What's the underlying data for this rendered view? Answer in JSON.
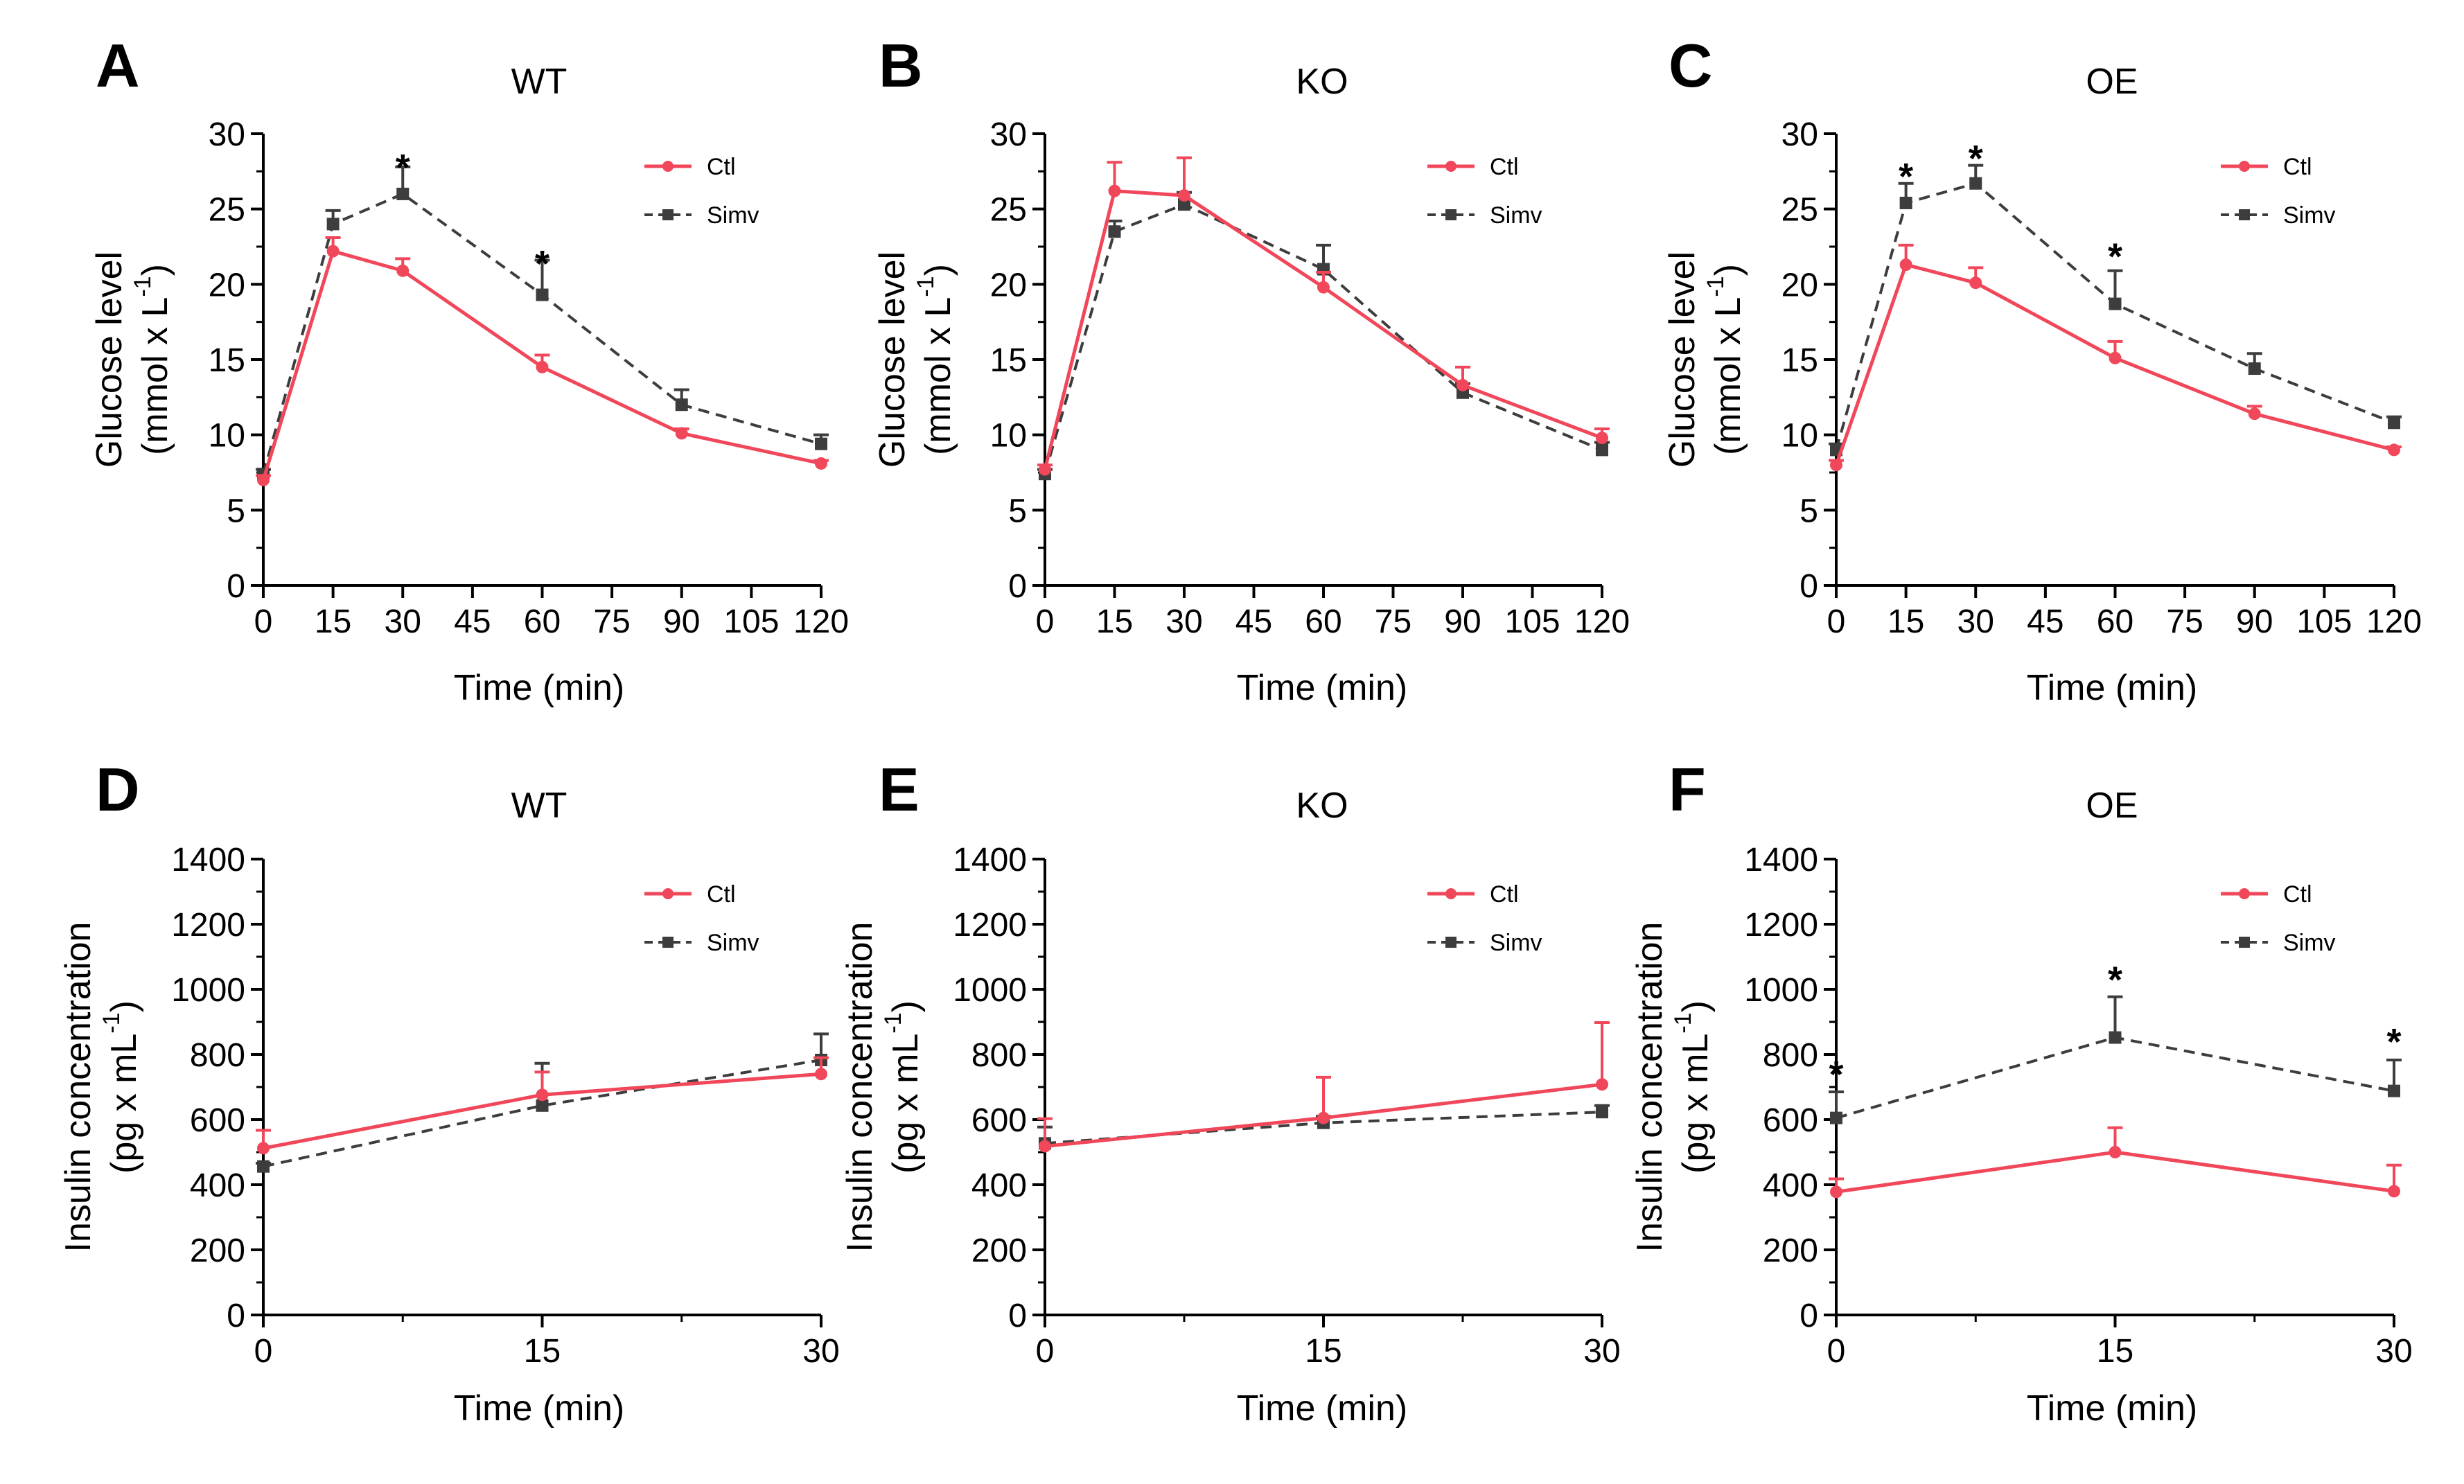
{
  "colors": {
    "ctl": "#F0475A",
    "simv": "#3D3D3D",
    "axis": "#000000"
  },
  "chart_data": [
    {
      "type": "line",
      "panel": "A",
      "title": "WT",
      "xlabel": "Time (min)",
      "ylabel": [
        "Glucose level",
        "(mmol x L",
        "-1",
        ")"
      ],
      "x": [
        0,
        15,
        30,
        60,
        90,
        120
      ],
      "xticks": [
        0,
        15,
        30,
        45,
        60,
        75,
        90,
        105,
        120
      ],
      "xlim": [
        0,
        120
      ],
      "ylim": [
        0,
        30
      ],
      "yticks": [
        0,
        5,
        10,
        15,
        20,
        25,
        30
      ],
      "series": [
        {
          "name": "Ctl",
          "values": [
            7.0,
            22.2,
            20.9,
            14.5,
            10.1,
            8.1
          ],
          "errors": [
            0.3,
            0.9,
            0.8,
            0.8,
            0.3,
            0.2
          ]
        },
        {
          "name": "Simv",
          "values": [
            7.4,
            24.0,
            26.0,
            19.3,
            12.0,
            9.4
          ],
          "errors": [
            0.3,
            0.9,
            1.8,
            2.3,
            1.0,
            0.6
          ]
        }
      ],
      "significance": [
        {
          "x": 30,
          "y": 28.2,
          "label": "*"
        },
        {
          "x": 60,
          "y": 21.8,
          "label": "*"
        }
      ]
    },
    {
      "type": "line",
      "panel": "B",
      "title": "KO",
      "xlabel": "Time (min)",
      "ylabel": [
        "Glucose level",
        "(mmol x L",
        "-1",
        ")"
      ],
      "x": [
        0,
        15,
        30,
        60,
        90,
        120
      ],
      "xticks": [
        0,
        15,
        30,
        45,
        60,
        75,
        90,
        105,
        120
      ],
      "xlim": [
        0,
        120
      ],
      "ylim": [
        0,
        30
      ],
      "yticks": [
        0,
        5,
        10,
        15,
        20,
        25,
        30
      ],
      "series": [
        {
          "name": "Ctl",
          "values": [
            7.7,
            26.2,
            25.9,
            19.8,
            13.3,
            9.8
          ],
          "errors": [
            0.3,
            1.9,
            2.5,
            1.0,
            1.2,
            0.6
          ]
        },
        {
          "name": "Simv",
          "values": [
            7.4,
            23.5,
            25.3,
            21.0,
            12.8,
            9.0
          ],
          "errors": [
            0.3,
            0.7,
            0.8,
            1.6,
            0.6,
            0.5
          ]
        }
      ],
      "significance": []
    },
    {
      "type": "line",
      "panel": "C",
      "title": "OE",
      "xlabel": "Time (min)",
      "ylabel": [
        "Glucose level",
        "(mmol x L",
        "-1",
        ")"
      ],
      "x": [
        0,
        15,
        30,
        60,
        90,
        120
      ],
      "xticks": [
        0,
        15,
        30,
        45,
        60,
        75,
        90,
        105,
        120
      ],
      "xlim": [
        0,
        120
      ],
      "ylim": [
        0,
        30
      ],
      "yticks": [
        0,
        5,
        10,
        15,
        20,
        25,
        30
      ],
      "series": [
        {
          "name": "Ctl",
          "values": [
            8.0,
            21.3,
            20.1,
            15.1,
            11.4,
            9.0
          ],
          "errors": [
            0.3,
            1.3,
            1.0,
            1.1,
            0.5,
            0.2
          ]
        },
        {
          "name": "Simv",
          "values": [
            9.0,
            25.4,
            26.7,
            18.7,
            14.4,
            10.8
          ],
          "errors": [
            0.4,
            1.3,
            1.2,
            2.2,
            1.0,
            0.4
          ]
        }
      ],
      "significance": [
        {
          "x": 15,
          "y": 27.6,
          "label": "*"
        },
        {
          "x": 30,
          "y": 28.8,
          "label": "*"
        },
        {
          "x": 60,
          "y": 22.3,
          "label": "*"
        }
      ]
    },
    {
      "type": "line",
      "panel": "D",
      "title": "WT",
      "xlabel": "Time (min)",
      "ylabel": [
        "Insulin concentration",
        "(pg x mL",
        "-1",
        ")"
      ],
      "x": [
        0,
        15,
        30
      ],
      "xticks": [
        0,
        15,
        30
      ],
      "xlim": [
        0,
        30
      ],
      "ylim": [
        0,
        1400
      ],
      "yticks": [
        0,
        200,
        400,
        600,
        800,
        1000,
        1200,
        1400
      ],
      "series": [
        {
          "name": "Ctl",
          "values": [
            512,
            676,
            740
          ],
          "errors": [
            55,
            70,
            50
          ]
        },
        {
          "name": "Simv",
          "values": [
            456,
            643,
            783
          ],
          "errors": [
            10,
            130,
            80
          ]
        }
      ],
      "significance": []
    },
    {
      "type": "line",
      "panel": "E",
      "title": "KO",
      "xlabel": "Time (min)",
      "ylabel": [
        "Insulin concentration",
        "(pg x mL",
        "-1",
        ")"
      ],
      "x": [
        0,
        15,
        30
      ],
      "xticks": [
        0,
        15,
        30
      ],
      "xlim": [
        0,
        30
      ],
      "ylim": [
        0,
        1400
      ],
      "yticks": [
        0,
        200,
        400,
        600,
        800,
        1000,
        1200,
        1400
      ],
      "series": [
        {
          "name": "Ctl",
          "values": [
            518,
            605,
            708
          ],
          "errors": [
            85,
            125,
            190
          ]
        },
        {
          "name": "Simv",
          "values": [
            527,
            590,
            623
          ],
          "errors": [
            50,
            20,
            20
          ]
        }
      ],
      "significance": []
    },
    {
      "type": "line",
      "panel": "F",
      "title": "OE",
      "xlabel": "Time (min)",
      "ylabel": [
        "Insulin concentration",
        "(pg x mL",
        "-1",
        ")"
      ],
      "x": [
        0,
        15,
        30
      ],
      "xticks": [
        0,
        15,
        30
      ],
      "xlim": [
        0,
        30
      ],
      "ylim": [
        0,
        1400
      ],
      "yticks": [
        0,
        200,
        400,
        600,
        800,
        1000,
        1200,
        1400
      ],
      "series": [
        {
          "name": "Ctl",
          "values": [
            378,
            500,
            380
          ],
          "errors": [
            40,
            75,
            80
          ]
        },
        {
          "name": "Simv",
          "values": [
            605,
            852,
            688
          ],
          "errors": [
            80,
            125,
            95
          ]
        }
      ],
      "significance": [
        {
          "x": 0,
          "y": 760,
          "label": "*"
        },
        {
          "x": 15,
          "y": 1050,
          "label": "*"
        },
        {
          "x": 30,
          "y": 860,
          "label": "*"
        }
      ]
    }
  ]
}
